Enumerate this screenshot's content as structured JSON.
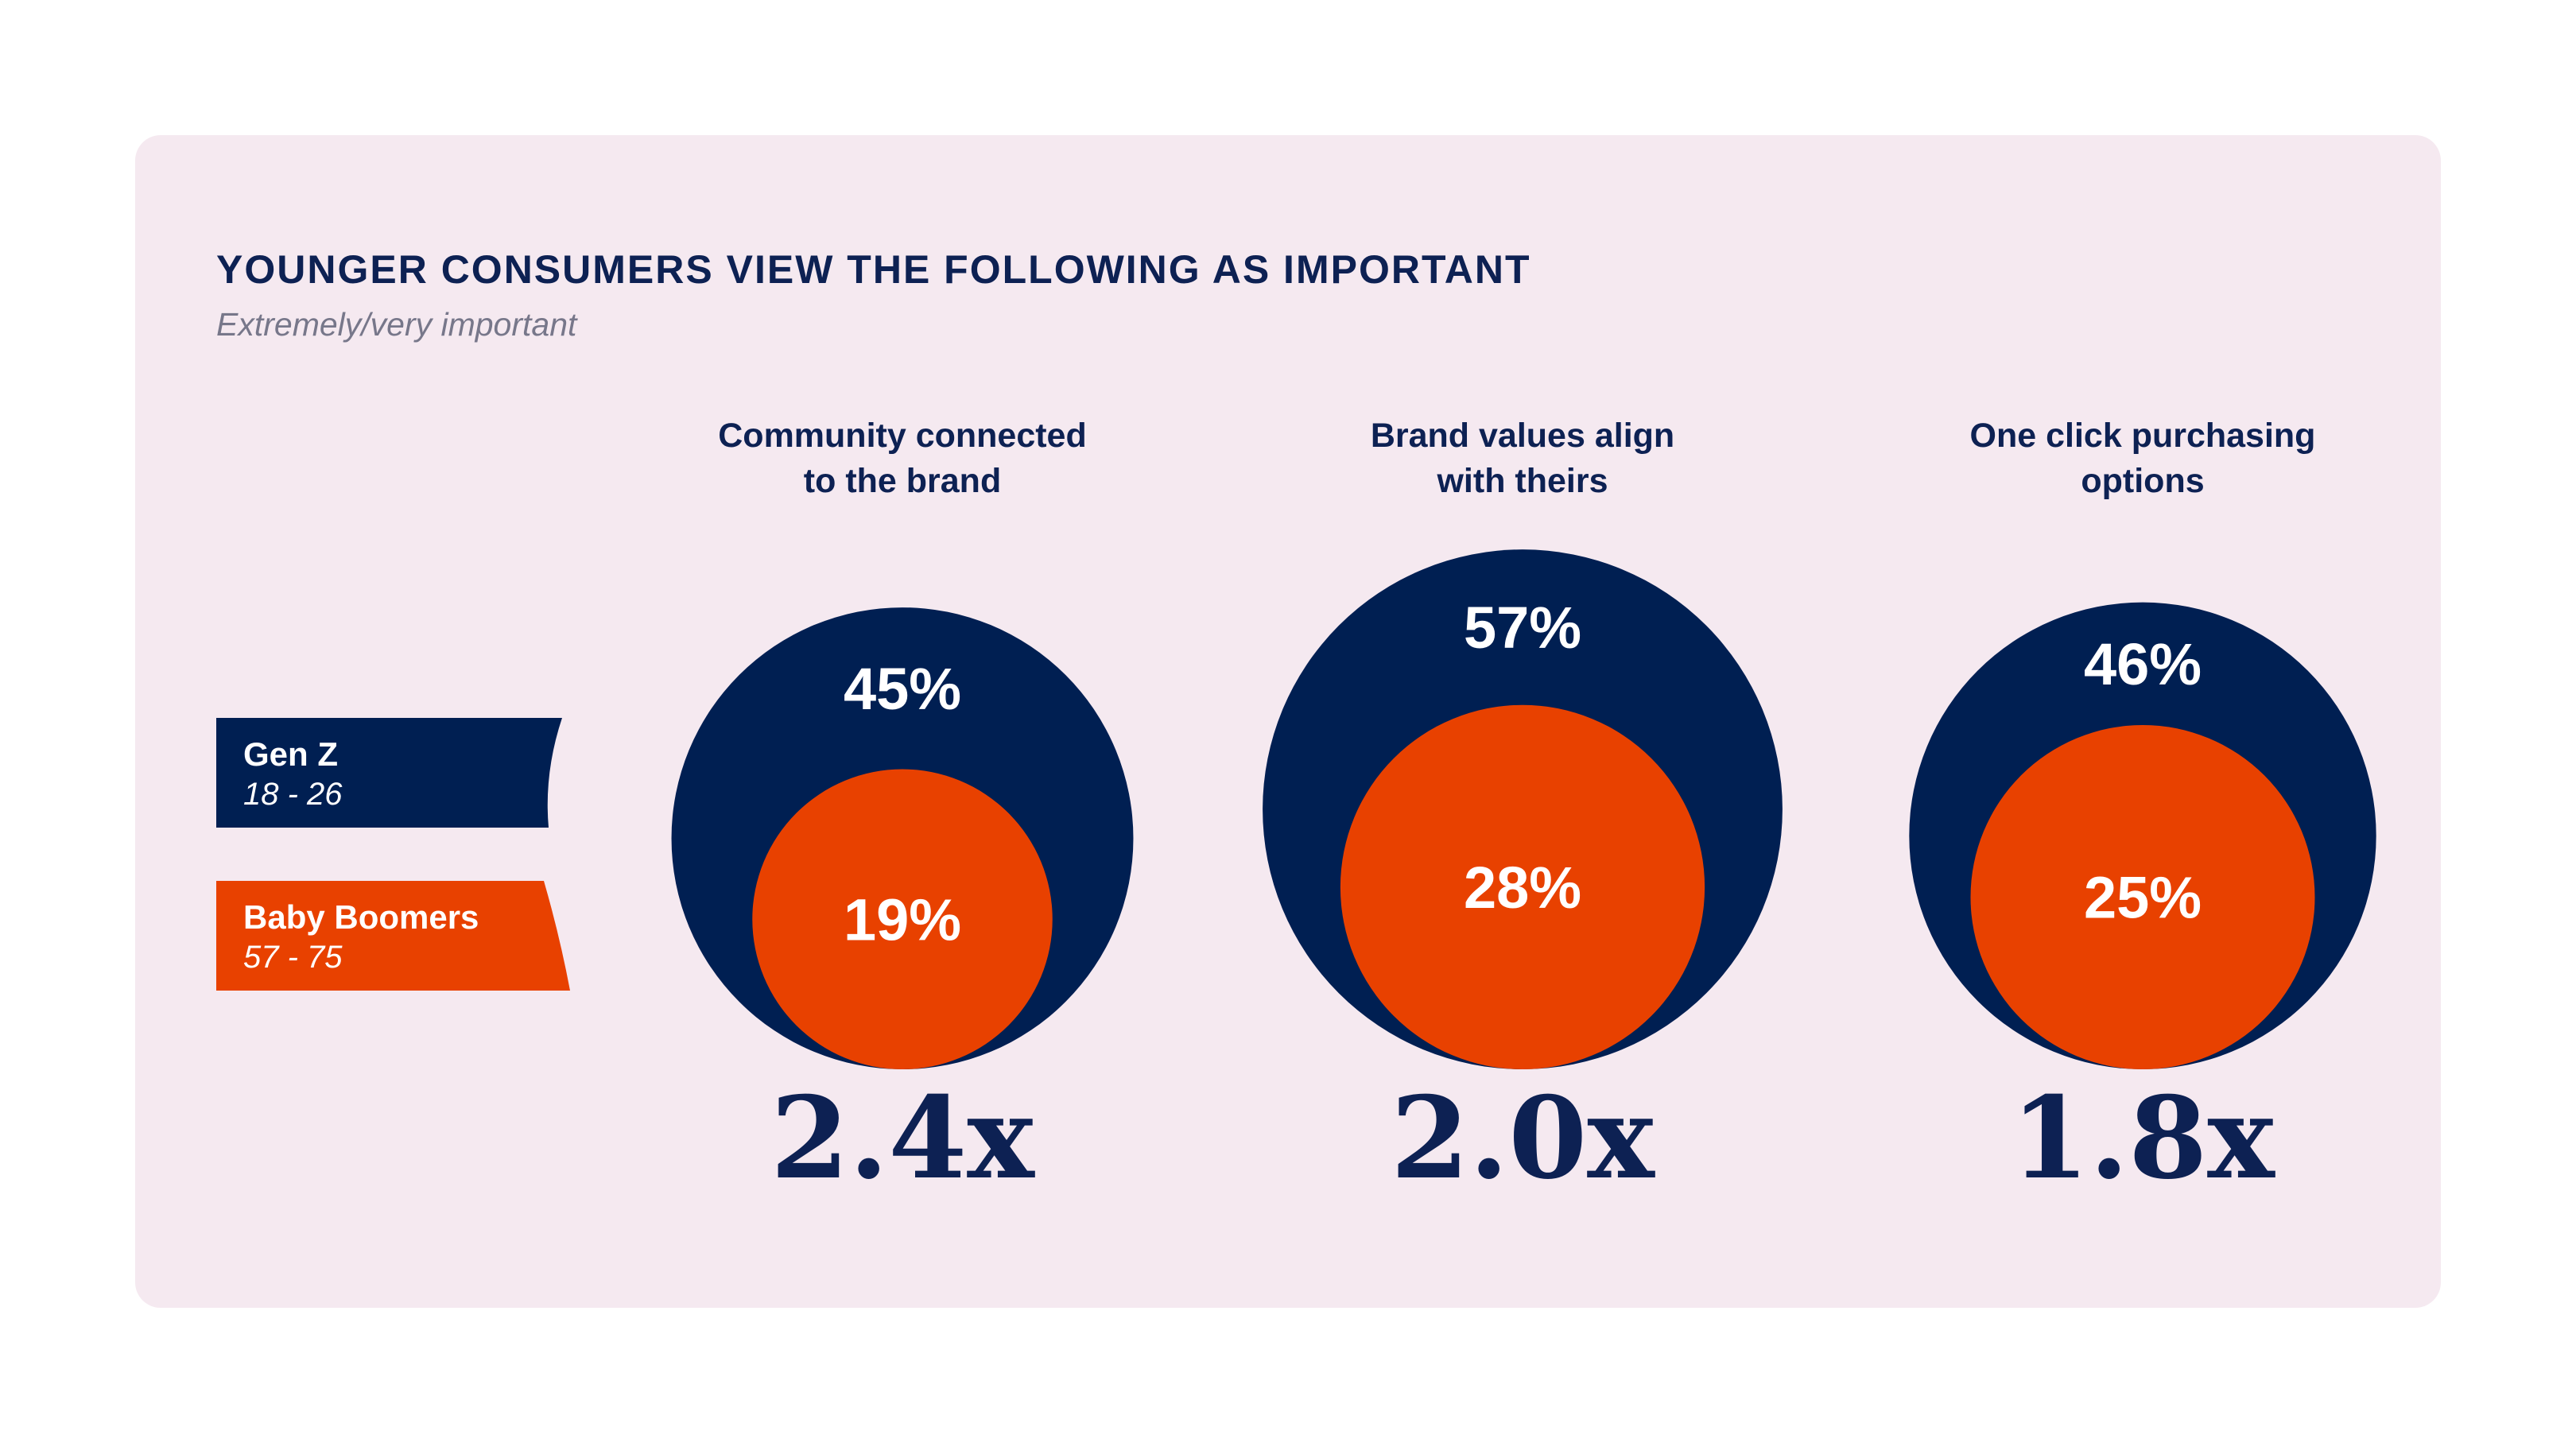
{
  "chart_data": {
    "type": "bubble-nested",
    "title": "YOUNGER CONSUMERS VIEW THE FOLLOWING AS IMPORTANT",
    "subtitle": "Extremely/very important",
    "series": [
      {
        "name": "Gen Z",
        "range": "18 - 26",
        "color": "#001f52"
      },
      {
        "name": "Baby Boomers",
        "range": "57 - 75",
        "color": "#e84100"
      }
    ],
    "categories": [
      {
        "label_lines": [
          "Community connected",
          "to the brand"
        ],
        "values": [
          45,
          19
        ],
        "value_labels": [
          "45%",
          "19%"
        ],
        "multiplier": "2.4x"
      },
      {
        "label_lines": [
          "Brand values align",
          "with theirs"
        ],
        "values": [
          57,
          28
        ],
        "value_labels": [
          "57%",
          "28%"
        ],
        "multiplier": "2.0x"
      },
      {
        "label_lines": [
          "One click purchasing",
          "options"
        ],
        "values": [
          46,
          25
        ],
        "value_labels": [
          "46%",
          "25%"
        ],
        "multiplier": "1.8x"
      }
    ]
  }
}
